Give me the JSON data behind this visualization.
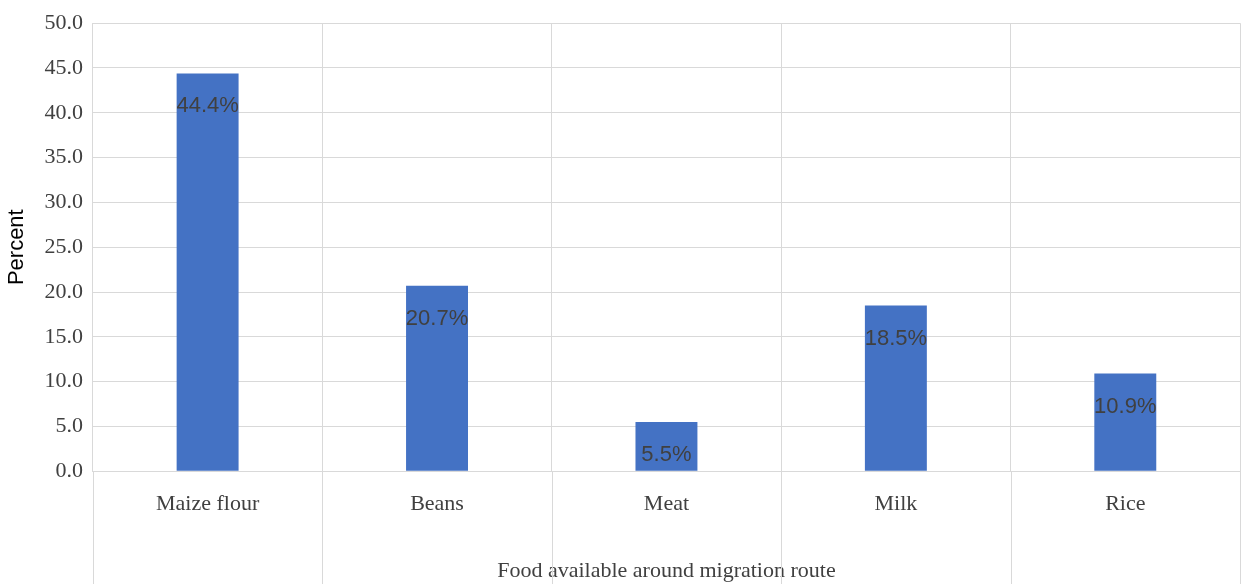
{
  "chart_data": {
    "type": "bar",
    "xlabel": "Food available around migration route",
    "ylabel": "Percent",
    "categories": [
      "Maize flour",
      "Beans",
      "Meat",
      "Milk",
      "Rice"
    ],
    "values": [
      44.4,
      20.7,
      5.5,
      18.5,
      10.9
    ],
    "value_labels": [
      "44.4%",
      "20.7%",
      "5.5%",
      "18.5%",
      "10.9%"
    ],
    "color": "#4472c4",
    "ylim": [
      0,
      50
    ],
    "yticks": [
      {
        "value": 0,
        "label": "0.0"
      },
      {
        "value": 5,
        "label": "5.0"
      },
      {
        "value": 10,
        "label": "10.0"
      },
      {
        "value": 15,
        "label": "15.0"
      },
      {
        "value": 20,
        "label": "20.0"
      },
      {
        "value": 25,
        "label": "25.0"
      },
      {
        "value": 30,
        "label": "30.0"
      },
      {
        "value": 35,
        "label": "35.0"
      },
      {
        "value": 40,
        "label": "40.0"
      },
      {
        "value": 45,
        "label": "45.0"
      },
      {
        "value": 50,
        "label": "50.0"
      }
    ],
    "grid": true,
    "legend": false
  }
}
